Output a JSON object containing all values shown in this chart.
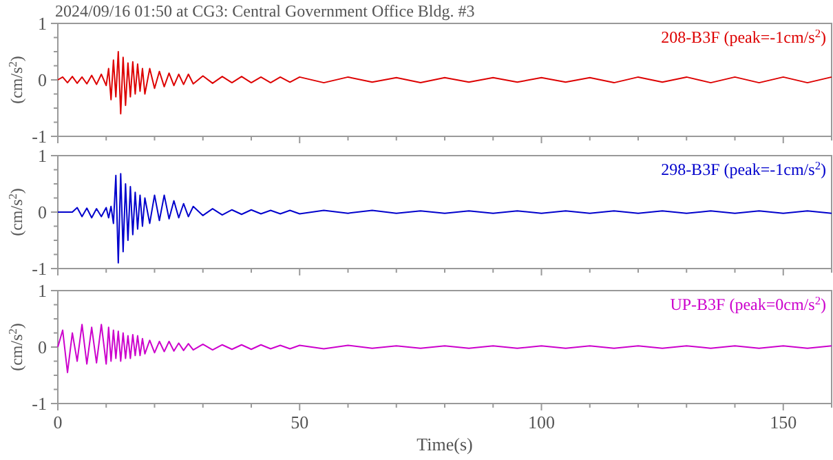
{
  "chart_data": [
    {
      "type": "line",
      "title": "2024/09/16 01:50 at CG3: Central Government Office Bldg. #3",
      "ylabel": "(cm/s$^{2}$)",
      "tick_labels": "y",
      "xlim": [
        0,
        160
      ],
      "ylim": [
        -1,
        1
      ],
      "xticks": [
        0,
        {
          "value": 10,
          "label": null
        },
        {
          "value": 20,
          "label": null
        },
        {
          "value": 30,
          "label": null
        },
        {
          "value": 40,
          "label": null
        },
        50,
        {
          "value": 60,
          "label": null
        },
        {
          "value": 70,
          "label": null
        },
        {
          "value": 80,
          "label": null
        },
        {
          "value": 90,
          "label": null
        },
        100,
        {
          "value": 110,
          "label": null
        },
        {
          "value": 120,
          "label": null
        },
        {
          "value": 130,
          "label": null
        },
        {
          "value": 140,
          "label": null
        },
        150,
        {
          "value": 160,
          "label": null
        }
      ],
      "yticks": [
        -1,
        {
          "value": -0.75,
          "label": null
        },
        {
          "value": -0.5,
          "label": null
        },
        {
          "value": -0.25,
          "label": null
        },
        0,
        {
          "value": 0.25,
          "label": null
        },
        {
          "value": 0.5,
          "label": null
        },
        {
          "value": 0.75,
          "label": null
        },
        1
      ],
      "x": [
        0,
        1,
        2,
        3,
        4,
        5,
        6,
        7,
        8,
        9,
        10,
        10.5,
        11,
        11.5,
        12,
        12.5,
        13,
        13.5,
        14,
        14.5,
        15,
        15.5,
        16,
        16.5,
        17,
        17.5,
        18,
        19,
        20,
        21,
        22,
        23,
        24,
        25,
        26,
        27,
        28,
        30,
        32,
        34,
        36,
        38,
        40,
        42,
        44,
        46,
        48,
        50,
        55,
        60,
        65,
        70,
        75,
        80,
        85,
        90,
        95,
        100,
        105,
        110,
        115,
        120,
        125,
        130,
        135,
        140,
        145,
        150,
        155,
        160
      ],
      "series": [
        {
          "name": "208-B3F (peak=-1cm/s$^{2}$)",
          "color": "#dd0000",
          "values": [
            0,
            0.05,
            -0.05,
            0.06,
            -0.06,
            0.05,
            -0.07,
            0.08,
            -0.08,
            0.1,
            -0.1,
            0.2,
            -0.35,
            0.35,
            -0.3,
            0.5,
            -0.6,
            0.4,
            -0.45,
            0.3,
            -0.3,
            0.32,
            -0.25,
            0.28,
            -0.2,
            0.2,
            -0.25,
            0.2,
            -0.15,
            0.15,
            -0.12,
            0.12,
            -0.1,
            0.1,
            -0.08,
            0.1,
            -0.07,
            0.07,
            -0.06,
            0.06,
            -0.05,
            0.06,
            -0.05,
            0.05,
            -0.05,
            0.05,
            -0.04,
            0.05,
            -0.05,
            0.05,
            -0.04,
            0.04,
            -0.05,
            0.04,
            -0.04,
            0.04,
            -0.04,
            0.04,
            -0.04,
            0.04,
            -0.05,
            0.05,
            -0.04,
            0.05,
            -0.05,
            0.05,
            -0.05,
            0.05,
            -0.05,
            0.05
          ]
        }
      ]
    },
    {
      "type": "line",
      "ylabel": "(cm/s$^{2}$)",
      "tick_labels": "y",
      "xlim": [
        0,
        160
      ],
      "ylim": [
        -1,
        1
      ],
      "xticks": [
        0,
        {
          "value": 10,
          "label": null
        },
        {
          "value": 20,
          "label": null
        },
        {
          "value": 30,
          "label": null
        },
        {
          "value": 40,
          "label": null
        },
        50,
        {
          "value": 60,
          "label": null
        },
        {
          "value": 70,
          "label": null
        },
        {
          "value": 80,
          "label": null
        },
        {
          "value": 90,
          "label": null
        },
        100,
        {
          "value": 110,
          "label": null
        },
        {
          "value": 120,
          "label": null
        },
        {
          "value": 130,
          "label": null
        },
        {
          "value": 140,
          "label": null
        },
        150,
        {
          "value": 160,
          "label": null
        }
      ],
      "yticks": [
        -1,
        {
          "value": -0.75,
          "label": null
        },
        {
          "value": -0.5,
          "label": null
        },
        {
          "value": -0.25,
          "label": null
        },
        0,
        {
          "value": 0.25,
          "label": null
        },
        {
          "value": 0.5,
          "label": null
        },
        {
          "value": 0.75,
          "label": null
        },
        1
      ],
      "x": [
        0,
        1,
        2,
        3,
        4,
        5,
        6,
        7,
        8,
        9,
        10,
        10.5,
        11,
        11.5,
        12,
        12.5,
        13,
        13.5,
        14,
        14.5,
        15,
        15.5,
        16,
        16.5,
        17,
        17.5,
        18,
        19,
        20,
        21,
        22,
        23,
        24,
        25,
        26,
        27,
        28,
        30,
        32,
        34,
        36,
        38,
        40,
        42,
        44,
        46,
        48,
        50,
        55,
        60,
        65,
        70,
        75,
        80,
        85,
        90,
        95,
        100,
        105,
        110,
        115,
        120,
        125,
        130,
        135,
        140,
        145,
        150,
        155,
        160
      ],
      "series": [
        {
          "name": "298-B3F (peak=-1cm/s$^{2}$)",
          "color": "#0000cc",
          "values": [
            0,
            0,
            0,
            0,
            0.08,
            -0.08,
            0.07,
            -0.1,
            0.06,
            -0.08,
            0.08,
            -0.1,
            0.1,
            -0.2,
            0.65,
            -0.9,
            0.68,
            -0.7,
            0.5,
            -0.5,
            0.45,
            -0.4,
            0.35,
            -0.3,
            0.3,
            -0.25,
            0.25,
            -0.2,
            0.3,
            -0.15,
            0.3,
            -0.12,
            0.2,
            -0.1,
            0.15,
            -0.08,
            0.1,
            -0.06,
            0.06,
            -0.05,
            0.04,
            -0.04,
            0.04,
            -0.03,
            0.03,
            -0.03,
            0.03,
            -0.03,
            0.03,
            -0.02,
            0.03,
            -0.02,
            0.02,
            -0.02,
            0.02,
            -0.02,
            0.02,
            -0.02,
            0.02,
            -0.02,
            0.02,
            -0.02,
            0.02,
            -0.02,
            0.02,
            -0.02,
            0.02,
            -0.02,
            0.02,
            -0.02
          ]
        }
      ]
    },
    {
      "type": "line",
      "xlabel": "Time(s)",
      "ylabel": "(cm/s$^{2}$)",
      "xlim": [
        0,
        160
      ],
      "ylim": [
        -1,
        1
      ],
      "xticks": [
        0,
        {
          "value": 10,
          "label": null
        },
        {
          "value": 20,
          "label": null
        },
        {
          "value": 30,
          "label": null
        },
        {
          "value": 40,
          "label": null
        },
        50,
        {
          "value": 60,
          "label": null
        },
        {
          "value": 70,
          "label": null
        },
        {
          "value": 80,
          "label": null
        },
        {
          "value": 90,
          "label": null
        },
        100,
        {
          "value": 110,
          "label": null
        },
        {
          "value": 120,
          "label": null
        },
        {
          "value": 130,
          "label": null
        },
        {
          "value": 140,
          "label": null
        },
        150,
        {
          "value": 160,
          "label": null
        }
      ],
      "yticks": [
        -1,
        {
          "value": -0.75,
          "label": null
        },
        {
          "value": -0.5,
          "label": null
        },
        {
          "value": -0.25,
          "label": null
        },
        0,
        {
          "value": 0.25,
          "label": null
        },
        {
          "value": 0.5,
          "label": null
        },
        {
          "value": 0.75,
          "label": null
        },
        1
      ],
      "x": [
        0,
        1,
        2,
        3,
        4,
        5,
        6,
        7,
        8,
        9,
        10,
        10.5,
        11,
        11.5,
        12,
        12.5,
        13,
        13.5,
        14,
        14.5,
        15,
        15.5,
        16,
        16.5,
        17,
        17.5,
        18,
        19,
        20,
        21,
        22,
        23,
        24,
        25,
        26,
        27,
        28,
        30,
        32,
        34,
        36,
        38,
        40,
        42,
        44,
        46,
        48,
        50,
        55,
        60,
        65,
        70,
        75,
        80,
        85,
        90,
        95,
        100,
        105,
        110,
        115,
        120,
        125,
        130,
        135,
        140,
        145,
        150,
        155,
        160
      ],
      "series": [
        {
          "name": "UP-B3F (peak=0cm/s$^{2}$)",
          "color": "#cc00cc",
          "values": [
            0,
            0.3,
            -0.45,
            0.25,
            -0.25,
            0.4,
            -0.3,
            0.35,
            -0.28,
            0.4,
            -0.3,
            0.35,
            -0.25,
            0.3,
            -0.2,
            0.28,
            -0.25,
            0.25,
            -0.2,
            0.2,
            -0.2,
            0.22,
            -0.15,
            0.2,
            -0.15,
            0.15,
            -0.12,
            0.12,
            -0.1,
            0.1,
            -0.08,
            0.1,
            -0.07,
            0.07,
            -0.06,
            0.06,
            -0.05,
            0.05,
            -0.05,
            0.04,
            -0.04,
            0.04,
            -0.04,
            0.04,
            -0.03,
            0.03,
            -0.03,
            0.03,
            -0.03,
            0.03,
            -0.02,
            0.02,
            -0.02,
            0.02,
            -0.02,
            0.02,
            -0.02,
            0.02,
            -0.02,
            0.02,
            -0.02,
            0.02,
            -0.02,
            0.02,
            -0.02,
            0.02,
            -0.02,
            0.02,
            -0.02,
            0.02
          ]
        }
      ]
    }
  ]
}
